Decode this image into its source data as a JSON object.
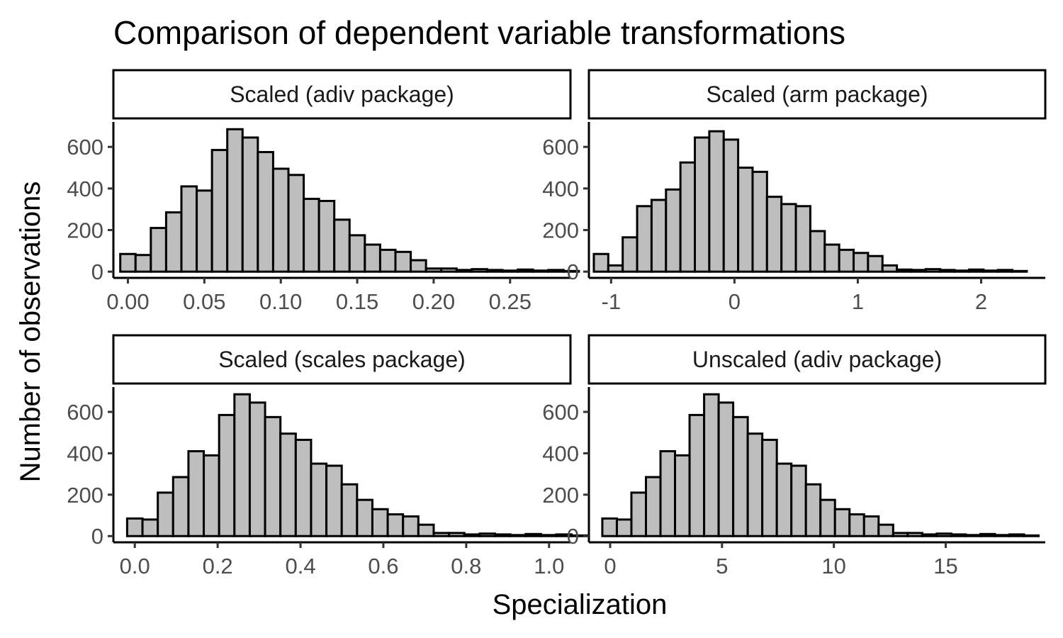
{
  "chart_data": {
    "type": "bar",
    "title": "Comparison of dependent variable transformations",
    "xlabel": "Specialization",
    "ylabel": "Number of observations",
    "bar_fill": "#bebebe",
    "bar_stroke": "#000000",
    "grid": false,
    "y_ticks": [
      0,
      200,
      400,
      600
    ],
    "y_tick_labels": [
      "0",
      "200",
      "400",
      "600"
    ],
    "ylim": [
      -30,
      720
    ],
    "panels": [
      {
        "label": "Scaled (adiv package)",
        "xlim": [
          -0.0095,
          0.2895
        ],
        "x_ticks": [
          0,
          0.05,
          0.1,
          0.15,
          0.2,
          0.25
        ],
        "x_tick_labels": [
          "0.00",
          "0.05",
          "0.10",
          "0.15",
          "0.20",
          "0.25"
        ],
        "bin_start": -0.005,
        "bin_width": 0.01,
        "counts": [
          85,
          80,
          210,
          285,
          410,
          390,
          585,
          685,
          645,
          575,
          495,
          465,
          350,
          340,
          250,
          175,
          130,
          105,
          95,
          55,
          15,
          15,
          8,
          12,
          8,
          5,
          10,
          5,
          8,
          3
        ]
      },
      {
        "label": "Scaled (arm package)",
        "xlim": [
          -1.18,
          2.52
        ],
        "x_ticks": [
          -1,
          0,
          1,
          2
        ],
        "x_tick_labels": [
          "-1",
          "0",
          "1",
          "2"
        ],
        "bin_start": -1.14,
        "bin_width": 0.117,
        "counts": [
          85,
          30,
          165,
          315,
          345,
          395,
          525,
          645,
          675,
          635,
          500,
          480,
          360,
          325,
          315,
          195,
          130,
          105,
          90,
          75,
          30,
          10,
          8,
          12,
          8,
          5,
          10,
          5,
          8,
          3
        ]
      },
      {
        "label": "Scaled (scales package)",
        "xlim": [
          -0.0517,
          1.0517
        ],
        "x_ticks": [
          0,
          0.2,
          0.4,
          0.6,
          0.8,
          1.0
        ],
        "x_tick_labels": [
          "0.0",
          "0.2",
          "0.4",
          "0.6",
          "0.8",
          "1.0"
        ],
        "bin_start": -0.0185,
        "bin_width": 0.037,
        "counts": [
          85,
          80,
          210,
          285,
          410,
          390,
          585,
          685,
          645,
          575,
          495,
          465,
          350,
          340,
          250,
          175,
          130,
          105,
          95,
          55,
          15,
          15,
          8,
          12,
          8,
          5,
          10,
          5,
          8,
          3
        ]
      },
      {
        "label": "Unscaled (adiv package)",
        "xlim": [
          -0.95,
          19.45
        ],
        "x_ticks": [
          0,
          5,
          10,
          15
        ],
        "x_tick_labels": [
          "0",
          "5",
          "10",
          "15"
        ],
        "bin_start": -0.35,
        "bin_width": 0.65,
        "counts": [
          85,
          80,
          210,
          285,
          410,
          390,
          585,
          685,
          645,
          575,
          495,
          465,
          350,
          340,
          250,
          175,
          130,
          105,
          95,
          55,
          15,
          15,
          8,
          12,
          8,
          5,
          10,
          5,
          8,
          3
        ]
      }
    ]
  }
}
